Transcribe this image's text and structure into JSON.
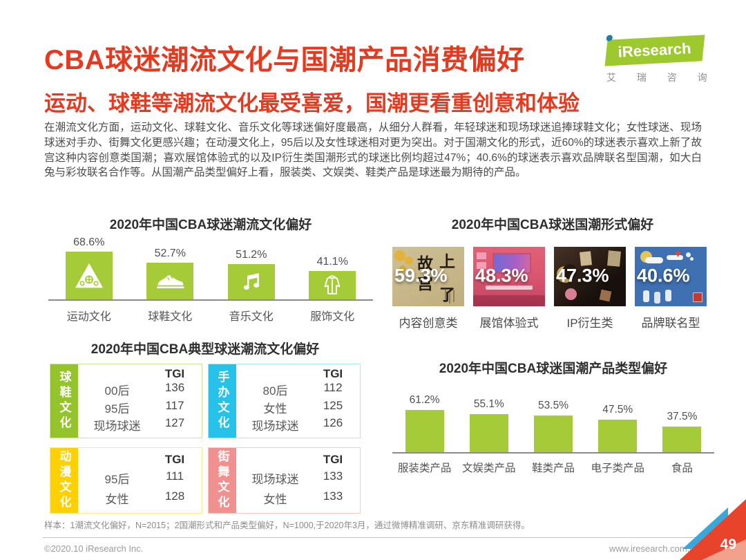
{
  "page": {
    "title": "CBA球迷潮流文化与国潮产品消费偏好",
    "subtitle": "运动、球鞋等潮流文化最受喜爱，国潮更看重创意和体验",
    "body_text": "在潮流文化方面，运动文化、球鞋文化、音乐文化等球迷偏好度最高，从细分人群看，年轻球迷和现场球迷追捧球鞋文化；女性球迷、现场球迷对手办、街舞文化更感兴趣；在动漫文化上，95后以及女性球迷相对更为突出。对于国潮文化的形式，近60%的球迷表示喜欢上新了故宫这种内容创意类国潮；喜欢展馆体验式的以及IP衍生类国潮形式的球迷比例均超过47%；40.6%的球迷表示喜欢品牌联名型国潮，如大白兔与彩妆联名合作等。从国潮产品类型偏好上看，服装类、文娱类、鞋类产品是球迷最为期待的产品。"
  },
  "logo": {
    "brand": "iResearch",
    "brand_cn": "艾 瑞 咨 询"
  },
  "colors": {
    "accent_red": "#e33a20",
    "bar_green": "#a6cb39",
    "logo_green": "#9dc82e",
    "logo_dot_teal": "#1e7f9e",
    "axis_gray": "#8a8a8a",
    "triangle_blue": "#3aa7db",
    "triangle_red": "#e8432b",
    "triangle_pale": "#f2a18c"
  },
  "chart_data": [
    {
      "type": "bar",
      "title": "2020年中国CBA球迷潮流文化偏好",
      "categories": [
        "运动文化",
        "球鞋文化",
        "音乐文化",
        "服饰文化"
      ],
      "values": [
        68.6,
        52.7,
        51.2,
        41.1
      ],
      "labels": [
        "68.6%",
        "52.7%",
        "51.2%",
        "41.1%"
      ],
      "unit": "%",
      "bar_color": "#a6cb39",
      "icons": [
        "sports-triangle-icon",
        "sneaker-icon",
        "music-notes-icon",
        "jacket-icon"
      ],
      "ylim": [
        0,
        100
      ],
      "grid": false,
      "legend": "none"
    },
    {
      "type": "pictorial-bar",
      "title": "2020年中国CBA球迷国潮形式偏好",
      "categories": [
        "内容创意类",
        "展馆体验式",
        "IP衍生类",
        "品牌联名型"
      ],
      "values": [
        59.3,
        48.3,
        47.3,
        40.6
      ],
      "labels": [
        "59.3%",
        "48.3%",
        "47.3%",
        "40.6%"
      ],
      "unit": "%",
      "photo_themes": [
        "palace-calligraphy-beige",
        "exhibition-hall-pink",
        "ip-products-dark",
        "brand-illustration-blue"
      ],
      "photo1_chars": [
        "故",
        "上",
        "宫",
        "了"
      ]
    },
    {
      "type": "table",
      "title": "2020年中国CBA典型球迷潮流文化偏好",
      "value_header": "TGI",
      "groups": [
        {
          "name": "球鞋文化",
          "color": "#94c32c",
          "border_color": "#cde29b",
          "rows": [
            [
              "00后",
              "136"
            ],
            [
              "95后",
              "117"
            ],
            [
              "现场球迷",
              "127"
            ]
          ]
        },
        {
          "name": "手办文化",
          "color": "#27c2e9",
          "border_color": "#a5e6f6",
          "rows": [
            [
              "80后",
              "112"
            ],
            [
              "女性",
              "125"
            ],
            [
              "现场球迷",
              "126"
            ]
          ]
        },
        {
          "name": "动漫文化",
          "color": "#fdd101",
          "border_color": "#fbe88f",
          "rows": [
            [
              "95后",
              "111"
            ],
            [
              "女性",
              "128"
            ]
          ]
        },
        {
          "name": "街舞文化",
          "color": "#f0908f",
          "border_color": "#f7c9c5",
          "rows": [
            [
              "现场球迷",
              "133"
            ],
            [
              "女性",
              "133"
            ]
          ]
        }
      ]
    },
    {
      "type": "bar",
      "title": "2020年中国CBA球迷国潮产品类型偏好",
      "categories": [
        "服装类产品",
        "文娱类产品",
        "鞋类产品",
        "电子类产品",
        "食品"
      ],
      "values": [
        61.2,
        55.1,
        53.5,
        47.5,
        37.5
      ],
      "labels": [
        "61.2%",
        "55.1%",
        "53.5%",
        "47.5%",
        "37.5%"
      ],
      "unit": "%",
      "bar_color": "#a6cb39",
      "ylim": [
        0,
        100
      ],
      "grid": false,
      "legend": "none"
    }
  ],
  "footer": {
    "note": "样本：1潮流文化偏好，N=2015；2国潮形式和产品类型偏好，N=1000,于2020年3月，通过微博精准调研、京东精准调研获得。",
    "copyright": "©2020.10 iResearch Inc.",
    "website": "www.iresearch.com.cn",
    "page_number": "49"
  }
}
